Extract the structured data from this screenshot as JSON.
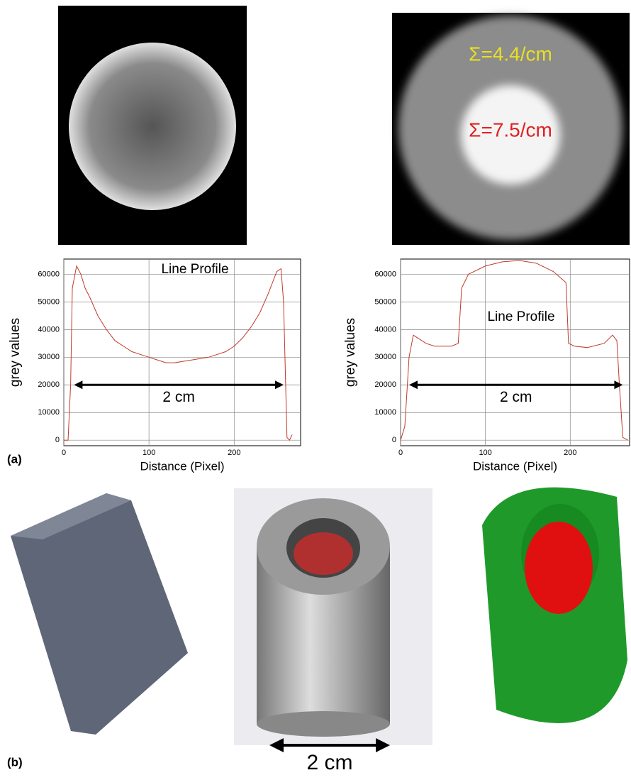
{
  "figure": {
    "label_a": "(a)",
    "label_b": "(b)",
    "sigma_outer": "Σ=4.4/cm",
    "sigma_inner": "Σ=7.5/cm",
    "scale_label": "2 cm"
  },
  "chart_data": [
    {
      "type": "line",
      "annotation": "Line Profile",
      "span_label": "2 cm",
      "x_label": "Distance (Pixel)",
      "y_label": "grey values",
      "x": [
        0,
        5,
        8,
        10,
        15,
        20,
        25,
        30,
        40,
        50,
        60,
        70,
        80,
        90,
        100,
        110,
        120,
        130,
        140,
        150,
        160,
        170,
        180,
        190,
        200,
        210,
        220,
        230,
        240,
        245,
        250,
        255,
        258,
        262,
        265,
        268
      ],
      "series": [
        {
          "color": "#c0392b",
          "values": [
            0,
            0,
            20000,
            55000,
            63000,
            60000,
            55000,
            52000,
            45000,
            40000,
            36000,
            34000,
            32000,
            31000,
            30000,
            29000,
            28000,
            28000,
            28500,
            29000,
            29500,
            30000,
            31000,
            32000,
            34000,
            37000,
            41000,
            46000,
            53000,
            57000,
            61000,
            62000,
            50000,
            1000,
            0,
            2000
          ]
        }
      ],
      "xlim": [
        0,
        278
      ],
      "ylim": [
        -2000,
        65500
      ],
      "xticks": [
        0,
        100,
        200
      ],
      "yticks": [
        0,
        10000,
        20000,
        30000,
        40000,
        50000,
        60000
      ],
      "grid": true
    },
    {
      "type": "line",
      "annotation": "Line Profile",
      "span_label": "2 cm",
      "x_label": "Distance (Pixel)",
      "y_label": "grey values",
      "x": [
        0,
        5,
        10,
        15,
        20,
        30,
        40,
        50,
        60,
        68,
        72,
        80,
        100,
        120,
        140,
        160,
        180,
        195,
        198,
        205,
        220,
        240,
        250,
        255,
        258,
        262,
        268
      ],
      "series": [
        {
          "color": "#c0392b",
          "values": [
            0,
            5000,
            30000,
            38000,
            37000,
            35000,
            34000,
            34000,
            34000,
            35000,
            55000,
            60000,
            63000,
            64500,
            65000,
            64000,
            61000,
            57000,
            35000,
            34000,
            33500,
            35000,
            38000,
            36000,
            20000,
            1000,
            0
          ]
        }
      ],
      "xlim": [
        0,
        270
      ],
      "ylim": [
        -2000,
        65500
      ],
      "xticks": [
        0,
        100,
        200
      ],
      "yticks": [
        0,
        10000,
        20000,
        30000,
        40000,
        50000,
        60000
      ],
      "grid": true
    }
  ]
}
